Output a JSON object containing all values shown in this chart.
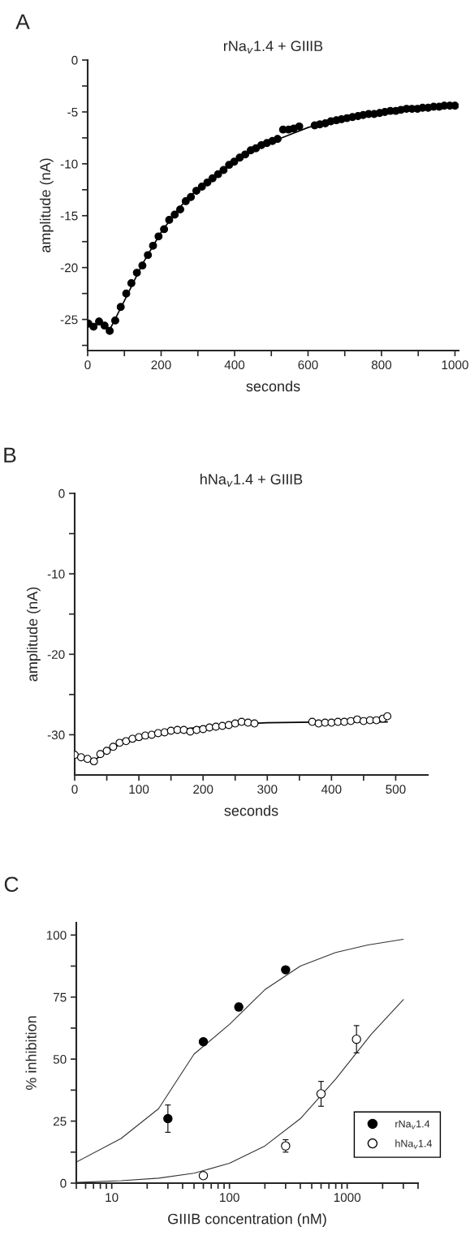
{
  "chart_data": [
    {
      "type": "scatter",
      "title": "rNa$_{v}$1.4 + GIIIB",
      "xlabel": "seconds",
      "ylabel": "amplitude (nA)",
      "annotations": [
        "A"
      ],
      "xlim": [
        0,
        1010
      ],
      "ylim": [
        -28,
        0
      ],
      "xticks": [
        0,
        {
          "value": 100,
          "label": null
        },
        200,
        {
          "value": 300,
          "label": null
        },
        400,
        {
          "value": 500,
          "label": null
        },
        600,
        {
          "value": 700,
          "label": null
        },
        800,
        {
          "value": 900,
          "label": null
        },
        1000
      ],
      "yticks": [
        0,
        {
          "value": -2.5,
          "label": null
        },
        -5,
        {
          "value": -7.5,
          "label": null
        },
        -10,
        {
          "value": -12.5,
          "label": null
        },
        -15,
        {
          "value": -17.5,
          "label": null
        },
        -20,
        {
          "value": -22.5,
          "label": null
        },
        -25,
        {
          "value": -27.5,
          "label": null
        }
      ],
      "series": [
        {
          "marker": "circle",
          "color": "#000000",
          "x": [
            2,
            16,
            31,
            46,
            60,
            75,
            90,
            105,
            119,
            134,
            149,
            164,
            178,
            193,
            208,
            222,
            237,
            252,
            267,
            281,
            296,
            311,
            326,
            340,
            355,
            370,
            385,
            399,
            414,
            429,
            444,
            458,
            473,
            488,
            503,
            517,
            532,
            547,
            561,
            576,
            618,
            632,
            647,
            662,
            677,
            691,
            706,
            721,
            736,
            750,
            765,
            780,
            795,
            809,
            824,
            839,
            853,
            868,
            883,
            898,
            912,
            927,
            942,
            957,
            971,
            986,
            1000
          ],
          "values": [
            -25.4,
            -25.7,
            -25.2,
            -25.6,
            -26.1,
            -25.1,
            -23.8,
            -22.5,
            -21.5,
            -20.5,
            -19.8,
            -18.8,
            -17.9,
            -17.0,
            -16.3,
            -15.4,
            -14.9,
            -14.4,
            -13.6,
            -13.2,
            -12.6,
            -12.2,
            -11.8,
            -11.4,
            -11.0,
            -10.6,
            -10.1,
            -9.8,
            -9.4,
            -9.1,
            -8.7,
            -8.5,
            -8.2,
            -8.0,
            -7.8,
            -7.6,
            -6.7,
            -6.7,
            -6.6,
            -6.4,
            -6.3,
            -6.2,
            -6.1,
            -5.9,
            -5.8,
            -5.7,
            -5.6,
            -5.5,
            -5.4,
            -5.3,
            -5.2,
            -5.2,
            -5.1,
            -5.0,
            -4.9,
            -4.9,
            -4.8,
            -4.7,
            -4.7,
            -4.7,
            -4.6,
            -4.6,
            -4.5,
            -4.5,
            -4.4,
            -4.4,
            -4.4
          ]
        },
        {
          "type": "line",
          "marker": "none",
          "line_style": "solid",
          "color": "#000000",
          "x": [
            60,
            100,
            150,
            200,
            250,
            300,
            350,
            400,
            450,
            500,
            550,
            600,
            650,
            700,
            800,
            900,
            1000
          ],
          "values": [
            -26,
            -23.2,
            -19.6,
            -16.6,
            -14.2,
            -12.4,
            -11,
            -9.7,
            -8.7,
            -7.9,
            -7.2,
            -6.5,
            -6.0,
            -5.6,
            -5.0,
            -4.7,
            -4.4
          ]
        }
      ]
    },
    {
      "type": "scatter",
      "title": "hNa$_{v}$1.4 + GIIIB",
      "xlabel": "seconds",
      "ylabel": "amplitude (nA)",
      "annotations": [
        "B"
      ],
      "xlim": [
        0,
        550
      ],
      "ylim": [
        -35,
        0
      ],
      "xticks": [
        0,
        {
          "value": 50,
          "label": null
        },
        100,
        {
          "value": 150,
          "label": null
        },
        200,
        {
          "value": 250,
          "label": null
        },
        300,
        {
          "value": 350,
          "label": null
        },
        400,
        {
          "value": 450,
          "label": null
        },
        500
      ],
      "yticks": [
        0,
        {
          "value": -5,
          "label": null
        },
        -10,
        {
          "value": -15,
          "label": null
        },
        -20,
        {
          "value": -25,
          "label": null
        },
        -30
      ],
      "series": [
        {
          "marker": "circle",
          "color": "#ffffff",
          "x": [
            0,
            10,
            20,
            30,
            40,
            50,
            60,
            70,
            80,
            90,
            100,
            110,
            120,
            130,
            140,
            150,
            160,
            170,
            180,
            190,
            200,
            210,
            220,
            230,
            240,
            250,
            260,
            270,
            280,
            370,
            380,
            390,
            400,
            410,
            420,
            430,
            440,
            450,
            460,
            470,
            480,
            487
          ],
          "values": [
            -32.5,
            -32.8,
            -33,
            -33.3,
            -32.4,
            -32,
            -31.5,
            -31,
            -30.8,
            -30.5,
            -30.3,
            -30.1,
            -30,
            -29.8,
            -29.7,
            -29.5,
            -29.4,
            -29.4,
            -29.6,
            -29.4,
            -29.3,
            -29.1,
            -29,
            -28.9,
            -28.8,
            -28.6,
            -28.4,
            -28.5,
            -28.6,
            -28.4,
            -28.6,
            -28.5,
            -28.5,
            -28.4,
            -28.4,
            -28.3,
            -28.1,
            -28.3,
            -28.2,
            -28.2,
            -28.0,
            -27.7
          ]
        },
        {
          "type": "line",
          "marker": "none",
          "line_style": "solid",
          "color": "#000000",
          "x": [
            30,
            50,
            75,
            100,
            150,
            200,
            250,
            300,
            400,
            487
          ],
          "values": [
            -33.2,
            -32.1,
            -31.0,
            -30.3,
            -29.5,
            -29.0,
            -28.7,
            -28.5,
            -28.4,
            -28.4
          ]
        }
      ]
    },
    {
      "type": "scatter",
      "xlabel": "GIIIB concentration (nM)",
      "ylabel": "% inhibition",
      "annotations": [
        "C"
      ],
      "log": "x",
      "legend": "bottom right",
      "xlim": [
        5,
        4000
      ],
      "ylim": [
        0,
        105
      ],
      "xticks": [
        {
          "value": 5,
          "label": null
        },
        {
          "value": 6,
          "label": null
        },
        {
          "value": 7,
          "label": null
        },
        {
          "value": 8,
          "label": null
        },
        {
          "value": 9,
          "label": null
        },
        10,
        {
          "value": 20,
          "label": null
        },
        {
          "value": 30,
          "label": null
        },
        {
          "value": 40,
          "label": null
        },
        {
          "value": 50,
          "label": null
        },
        {
          "value": 60,
          "label": null
        },
        {
          "value": 70,
          "label": null
        },
        {
          "value": 80,
          "label": null
        },
        {
          "value": 90,
          "label": null
        },
        100,
        {
          "value": 200,
          "label": null
        },
        {
          "value": 300,
          "label": null
        },
        {
          "value": 400,
          "label": null
        },
        {
          "value": 500,
          "label": null
        },
        {
          "value": 600,
          "label": null
        },
        {
          "value": 700,
          "label": null
        },
        {
          "value": 800,
          "label": null
        },
        {
          "value": 900,
          "label": null
        },
        1000,
        {
          "value": 2000,
          "label": null
        },
        {
          "value": 3000,
          "label": null
        },
        {
          "value": 4000,
          "label": null
        }
      ],
      "yticks": [
        0,
        {
          "value": 12.5,
          "label": null
        },
        25,
        {
          "value": 37.5,
          "label": null
        },
        50,
        {
          "value": 62.5,
          "label": null
        },
        75,
        {
          "value": 87.5,
          "label": null
        },
        100
      ],
      "series": [
        {
          "name": "rNa$_{v}$1.4",
          "marker": "circle",
          "color": "#000000",
          "x": [
            30,
            60,
            120,
            300
          ],
          "values": [
            26,
            57,
            71,
            86
          ],
          "errors": [
            5.5,
            null,
            1.5,
            null
          ]
        },
        {
          "name": "hNa$_{v}$1.4",
          "marker": "circle",
          "color": "#ffffff",
          "x": [
            60,
            300,
            600,
            1200
          ],
          "values": [
            3,
            15,
            36,
            58
          ],
          "errors": [
            null,
            2.5,
            5,
            5.5
          ]
        },
        {
          "type": "line",
          "marker": "none",
          "line_style": "solid",
          "color": "#333333",
          "x": [
            5,
            12,
            25,
            50,
            100,
            200,
            400,
            800,
            1500,
            3000
          ],
          "values": [
            8.5,
            18,
            30,
            52,
            64,
            78,
            87.5,
            93,
            96,
            98.3
          ]
        },
        {
          "type": "line",
          "marker": "none",
          "line_style": "solid",
          "color": "#333333",
          "x": [
            5,
            12,
            25,
            50,
            100,
            200,
            400,
            800,
            1600,
            3000
          ],
          "values": [
            0.3,
            1,
            2,
            4,
            8,
            15,
            26,
            42,
            60,
            74
          ]
        }
      ]
    }
  ]
}
